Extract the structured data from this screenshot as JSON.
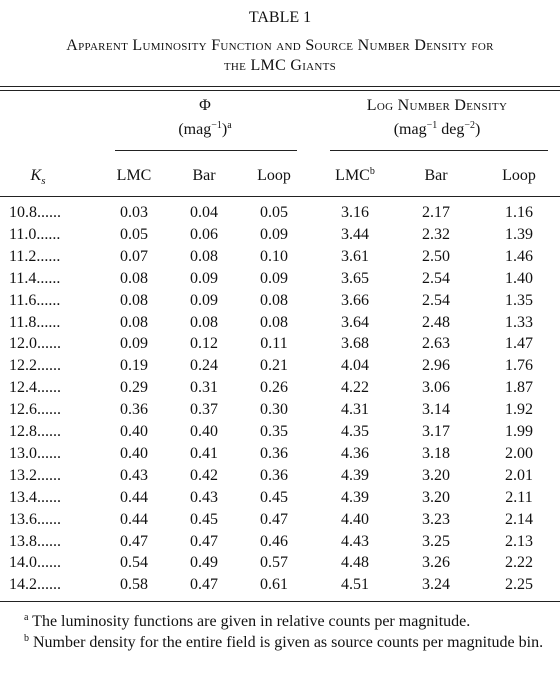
{
  "title": "TABLE 1",
  "caption": [
    "Apparent Luminosity Function and Source Number Density for",
    "the LMC Giants"
  ],
  "table": {
    "groups": [
      {
        "label": "Φ",
        "unit": [
          "(mag",
          "−1",
          ")",
          "a"
        ]
      },
      {
        "label": "Log Number Density",
        "unit": [
          "(mag",
          "−1",
          " deg",
          "−2",
          ")"
        ]
      }
    ],
    "columns": [
      [
        "K",
        "s"
      ],
      [
        "LMC"
      ],
      [
        "Bar"
      ],
      [
        "Loop"
      ],
      [
        "LMC",
        "b"
      ],
      [
        "Bar"
      ],
      [
        "Loop"
      ]
    ],
    "rows": [
      [
        "10.8......",
        "0.03",
        "0.04",
        "0.05",
        "3.16",
        "2.17",
        "1.16"
      ],
      [
        "11.0......",
        "0.05",
        "0.06",
        "0.09",
        "3.44",
        "2.32",
        "1.39"
      ],
      [
        "11.2......",
        "0.07",
        "0.08",
        "0.10",
        "3.61",
        "2.50",
        "1.46"
      ],
      [
        "11.4......",
        "0.08",
        "0.09",
        "0.09",
        "3.65",
        "2.54",
        "1.40"
      ],
      [
        "11.6......",
        "0.08",
        "0.09",
        "0.08",
        "3.66",
        "2.54",
        "1.35"
      ],
      [
        "11.8......",
        "0.08",
        "0.08",
        "0.08",
        "3.64",
        "2.48",
        "1.33"
      ],
      [
        "12.0......",
        "0.09",
        "0.12",
        "0.11",
        "3.68",
        "2.63",
        "1.47"
      ],
      [
        "12.2......",
        "0.19",
        "0.24",
        "0.21",
        "4.04",
        "2.96",
        "1.76"
      ],
      [
        "12.4......",
        "0.29",
        "0.31",
        "0.26",
        "4.22",
        "3.06",
        "1.87"
      ],
      [
        "12.6......",
        "0.36",
        "0.37",
        "0.30",
        "4.31",
        "3.14",
        "1.92"
      ],
      [
        "12.8......",
        "0.40",
        "0.40",
        "0.35",
        "4.35",
        "3.17",
        "1.99"
      ],
      [
        "13.0......",
        "0.40",
        "0.41",
        "0.36",
        "4.36",
        "3.18",
        "2.00"
      ],
      [
        "13.2......",
        "0.43",
        "0.42",
        "0.36",
        "4.39",
        "3.20",
        "2.01"
      ],
      [
        "13.4......",
        "0.44",
        "0.43",
        "0.45",
        "4.39",
        "3.20",
        "2.11"
      ],
      [
        "13.6......",
        "0.44",
        "0.45",
        "0.47",
        "4.40",
        "3.23",
        "2.14"
      ],
      [
        "13.8......",
        "0.47",
        "0.47",
        "0.46",
        "4.43",
        "3.25",
        "2.13"
      ],
      [
        "14.0......",
        "0.54",
        "0.49",
        "0.57",
        "4.48",
        "3.26",
        "2.22"
      ],
      [
        "14.2......",
        "0.58",
        "0.47",
        "0.61",
        "4.51",
        "3.24",
        "2.25"
      ]
    ]
  },
  "footnotes": [
    {
      "mark": "a",
      "text": "The luminosity functions are given in relative counts per magnitude."
    },
    {
      "mark": "b",
      "text": "Number density for the entire field is given as source counts per magnitude bin."
    }
  ]
}
